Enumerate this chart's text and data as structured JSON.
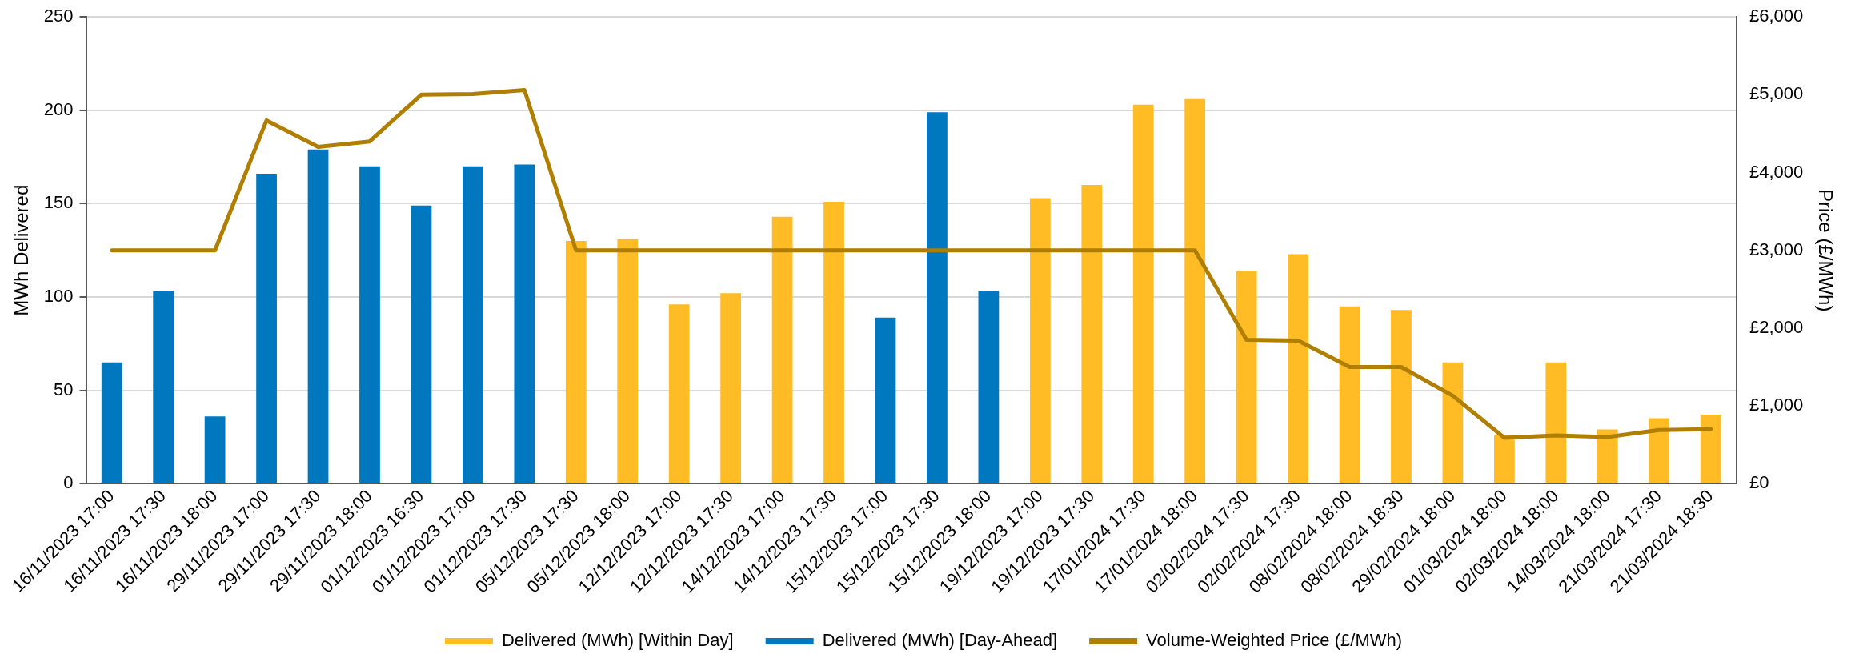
{
  "chart_data": {
    "type": "bar",
    "stacked": true,
    "ylabel": "MWh Delivered",
    "y2label": "Price (£/MWh)",
    "categories": [
      "16/11/2023 17:00",
      "16/11/2023 17:30",
      "16/11/2023 18:00",
      "29/11/2023 17:00",
      "29/11/2023 17:30",
      "29/11/2023 18:00",
      "01/12/2023 16:30",
      "01/12/2023 17:00",
      "01/12/2023 17:30",
      "05/12/2023 17:30",
      "05/12/2023 18:00",
      "12/12/2023 17:00",
      "12/12/2023 17:30",
      "14/12/2023 17:00",
      "14/12/2023 17:30",
      "15/12/2023 17:00",
      "15/12/2023 17:30",
      "15/12/2023 18:00",
      "19/12/2023 17:00",
      "19/12/2023 17:30",
      "17/01/2024 17:30",
      "17/01/2024 18:00",
      "02/02/2024 17:30",
      "02/02/2024 17:30",
      "08/02/2024 18:00",
      "08/02/2024 18:30",
      "29/02/2024 18:00",
      "01/03/2024 18:00",
      "02/03/2024 18:00",
      "14/03/2024 18:00",
      "21/03/2024 17:30",
      "21/03/2024 18:30"
    ],
    "series": [
      {
        "name": "Delivered (MWh) [Within Day]",
        "color": "#ffbc25",
        "values": [
          null,
          null,
          null,
          null,
          null,
          null,
          null,
          null,
          null,
          130,
          131,
          96,
          102,
          143,
          151,
          null,
          null,
          null,
          153,
          160,
          203,
          206,
          114,
          123,
          95,
          93,
          65,
          26,
          65,
          29,
          35,
          37
        ]
      },
      {
        "name": "Delivered (MWh) [Day-Ahead]",
        "color": "#0078c0",
        "values": [
          65,
          103,
          36,
          166,
          179,
          170,
          149,
          170,
          171,
          null,
          null,
          null,
          null,
          null,
          null,
          89,
          199,
          103,
          null,
          null,
          null,
          null,
          null,
          null,
          null,
          null,
          null,
          null,
          null,
          null,
          null,
          null
        ]
      },
      {
        "name": "Volume-Weighted Price (£/MWh)",
        "type": "line",
        "axis": "y2",
        "color": "#b07e00",
        "marker": "none",
        "line_style": "solid",
        "values": [
          3000,
          3000,
          3000,
          4670,
          4330,
          4400,
          5000,
          5010,
          5060,
          3000,
          3000,
          3000,
          3000,
          3000,
          3000,
          3000,
          3000,
          3000,
          3000,
          3000,
          3000,
          3000,
          1850,
          1840,
          1500,
          1500,
          1130,
          590,
          620,
          600,
          690,
          700
        ]
      }
    ],
    "ylim": [
      0,
      250
    ],
    "yticks": [
      0,
      50,
      100,
      150,
      200,
      250
    ],
    "y2lim": [
      0,
      6000
    ],
    "y2ticks": [
      {
        "value": 0,
        "label": "£0"
      },
      {
        "value": 1000,
        "label": "£1,000"
      },
      {
        "value": 2000,
        "label": "£2,000"
      },
      {
        "value": 3000,
        "label": "£3,000"
      },
      {
        "value": 4000,
        "label": "£4,000"
      },
      {
        "value": 5000,
        "label": "£5,000"
      },
      {
        "value": 6000,
        "label": "£6,000"
      }
    ],
    "grid": "y",
    "legend": "bottom"
  }
}
